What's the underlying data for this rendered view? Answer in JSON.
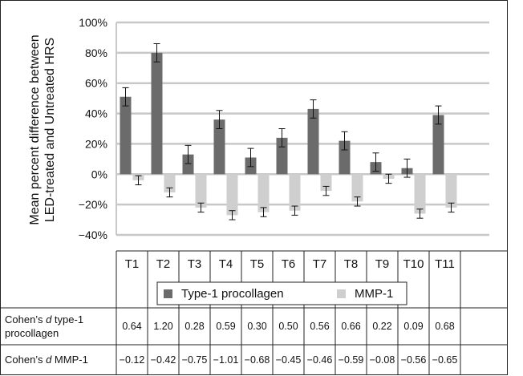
{
  "chart_data": {
    "type": "bar",
    "ylabel_lines": [
      "Mean percent difference between",
      "LED-treated and Untreated HRS"
    ],
    "ylim": [
      -40,
      100
    ],
    "yticks": [
      -40,
      -20,
      0,
      20,
      40,
      60,
      80,
      100
    ],
    "ytick_labels": [
      "−40%",
      "−20%",
      "0%",
      "20%",
      "40%",
      "60%",
      "80%",
      "100%"
    ],
    "grid": true,
    "legend_position": "bottom",
    "categories": [
      "T1",
      "T2",
      "T3",
      "T4",
      "T5",
      "T6",
      "T7",
      "T8",
      "T9",
      "T10",
      "T11"
    ],
    "series": [
      {
        "name": "Type-1 procollagen",
        "color": "#6b6b6b",
        "values": [
          51,
          80,
          13,
          36,
          11,
          24,
          43,
          22,
          8,
          4,
          39
        ],
        "error": [
          6,
          6,
          6,
          6,
          6,
          6,
          6,
          6,
          6,
          6,
          6
        ]
      },
      {
        "name": "MMP-1",
        "color": "#cfcfcf",
        "values": [
          -4,
          -12,
          -22,
          -27,
          -25,
          -24,
          -11,
          -18,
          -3,
          -26,
          -22
        ],
        "error": [
          3,
          3,
          3,
          3,
          3,
          3,
          3,
          3,
          3,
          3,
          3
        ]
      }
    ],
    "table": {
      "rows": [
        {
          "label_parts": [
            "Cohen’s ",
            "d",
            " type-1",
            "procollagen"
          ],
          "values": [
            "0.64",
            "1.20",
            "0.28",
            "0.59",
            "0.30",
            "0.50",
            "0.56",
            "0.66",
            "0.22",
            "0.09",
            "0.68"
          ]
        },
        {
          "label_parts": [
            "Cohen’s ",
            "d",
            " MMP-1",
            ""
          ],
          "values": [
            "−0.12",
            "−0.42",
            "−0.75",
            "−1.01",
            "−0.68",
            "−0.45",
            "−0.46",
            "−0.59",
            "−0.08",
            "−0.56",
            "−0.65"
          ]
        }
      ]
    }
  }
}
